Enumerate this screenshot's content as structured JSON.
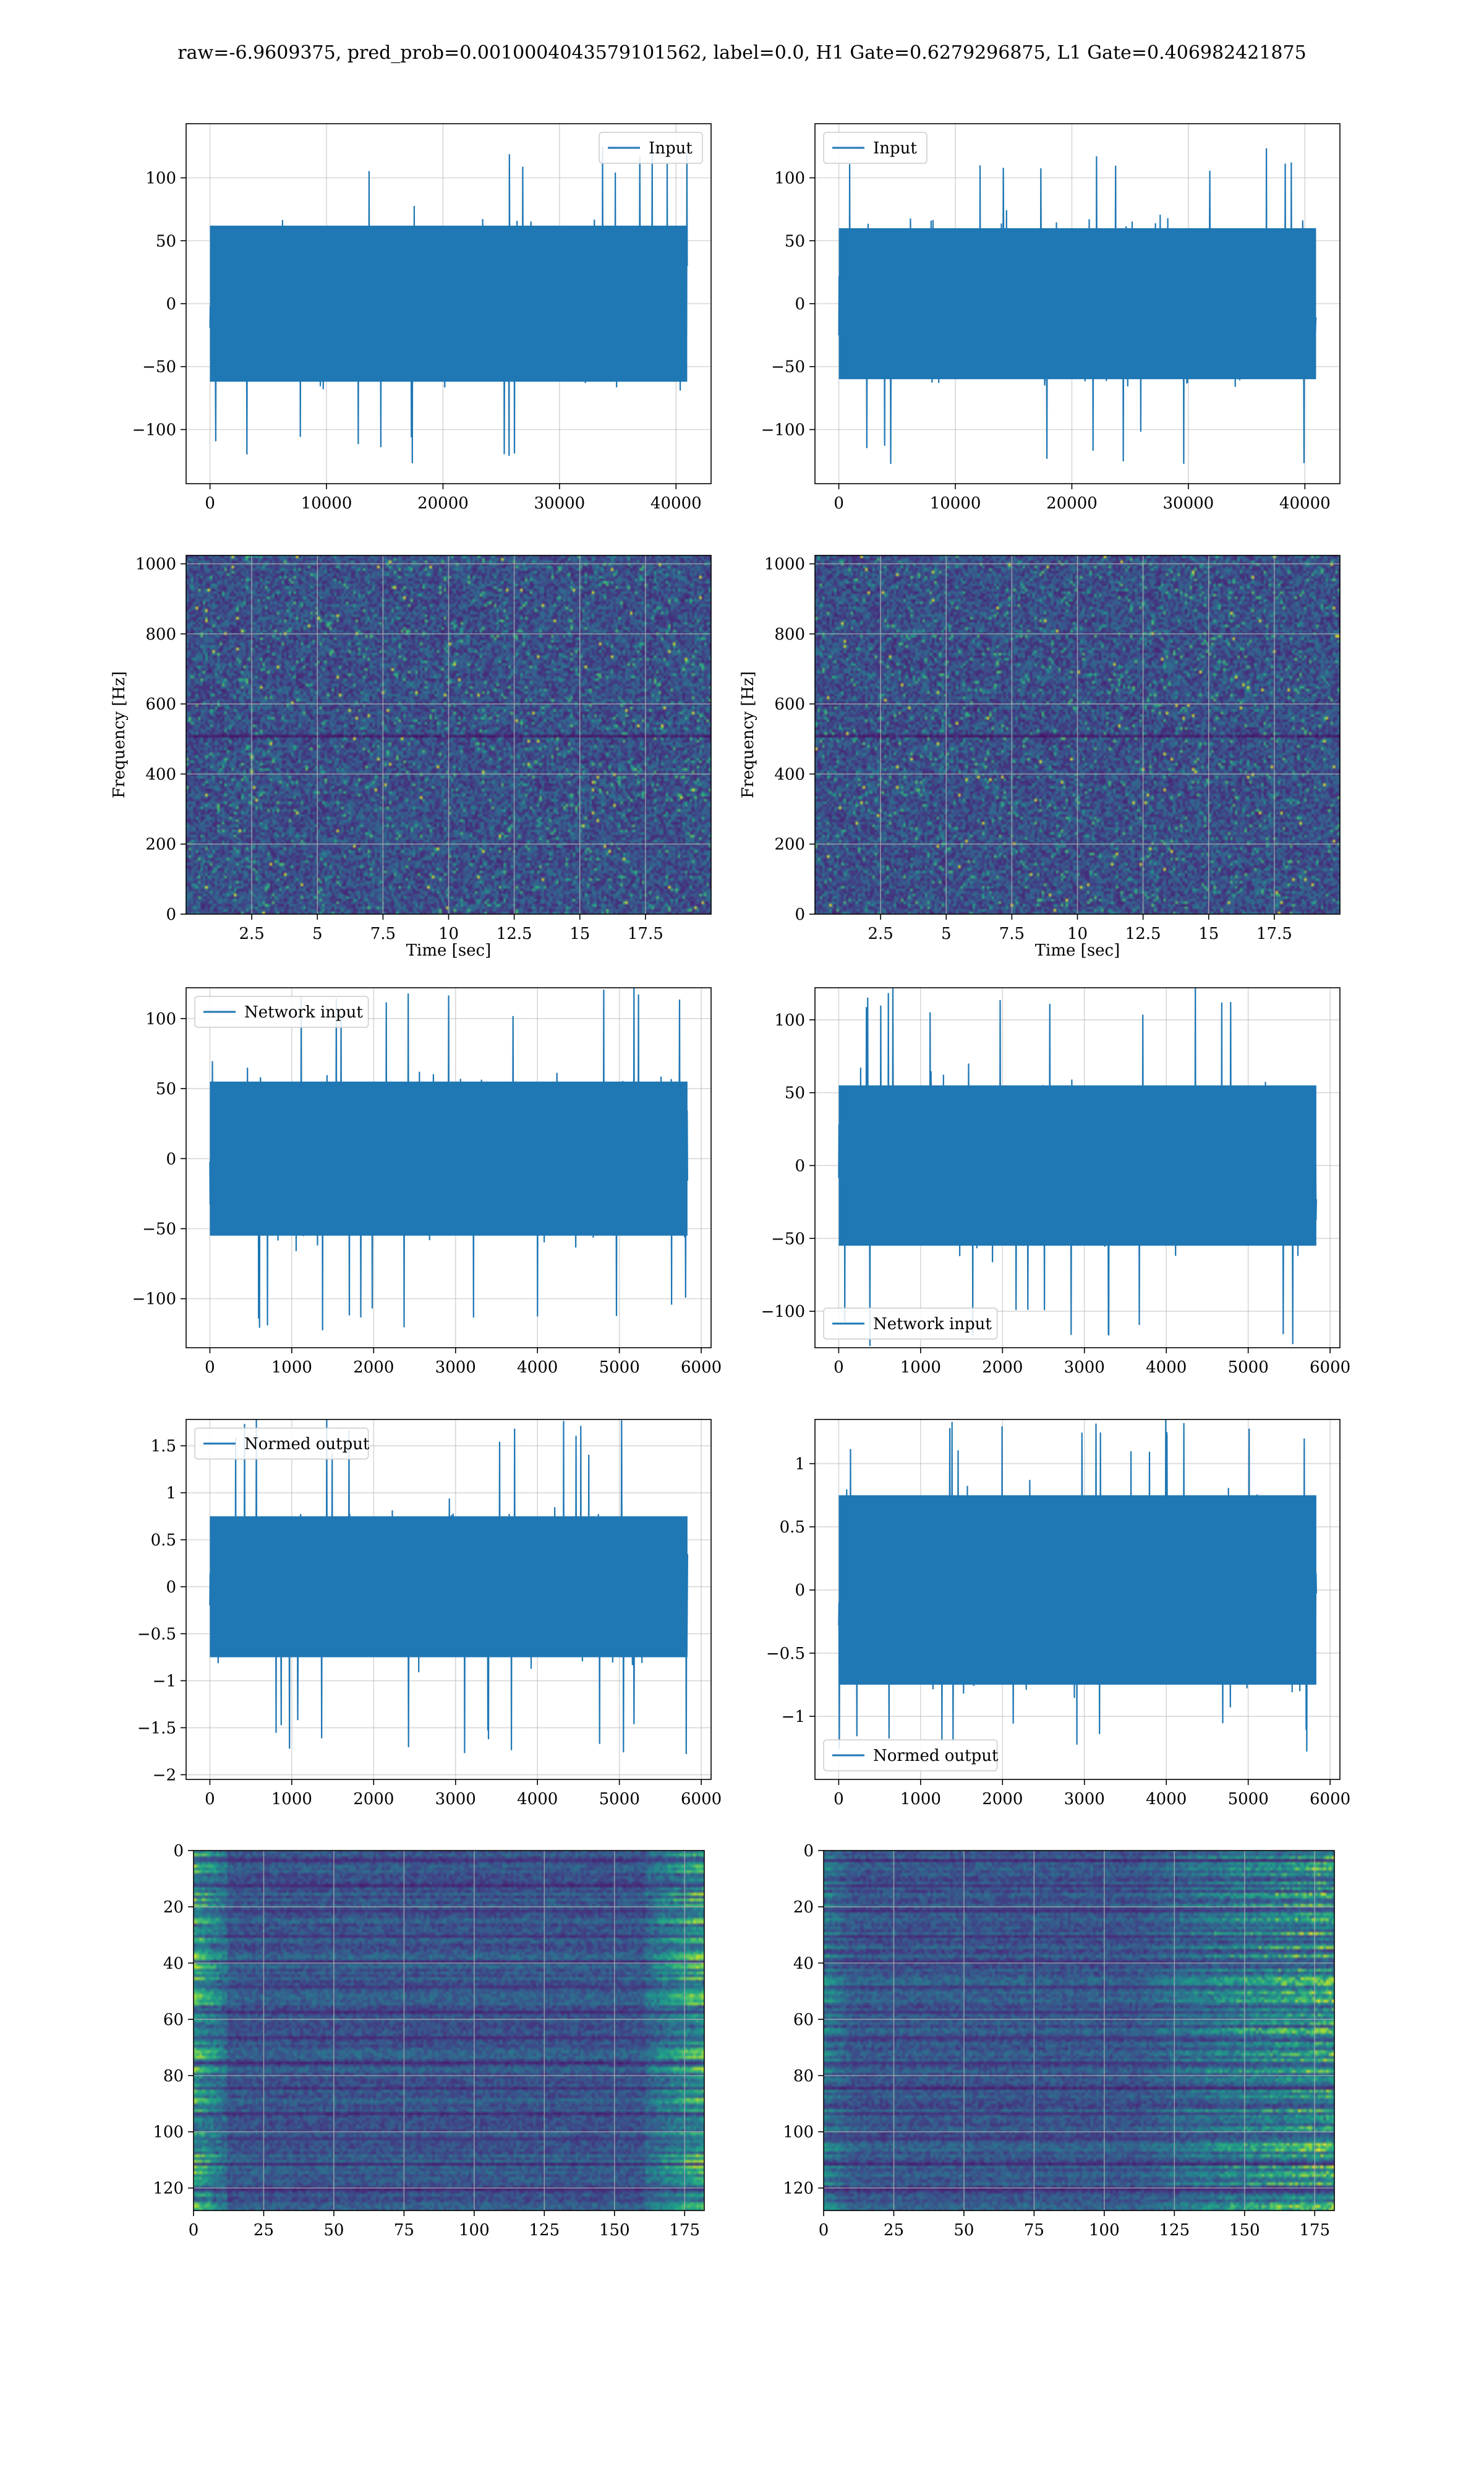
{
  "title": "raw=-6.9609375, pred_prob=0.0010004043579101562, label=0.0, H1 Gate=0.6279296875, L1 Gate=0.406982421875",
  "colors": {
    "series": "#1f77b4",
    "viridis": [
      "#440154",
      "#482878",
      "#3e4989",
      "#31688e",
      "#26828e",
      "#1f9e89",
      "#35b779",
      "#6ece58",
      "#b5de2b",
      "#fde725"
    ],
    "grid": "#b0b0b0"
  },
  "chart_data": [
    {
      "id": "h1-input",
      "type": "line",
      "x_range": [
        0,
        40960
      ],
      "xlim": [
        -2048,
        43008
      ],
      "ylim": [
        -143,
        143
      ],
      "xticks": [
        0,
        10000,
        20000,
        30000,
        40000
      ],
      "yticks": [
        -100,
        -50,
        0,
        50,
        100
      ],
      "series": [
        {
          "name": "Input"
        }
      ],
      "legend": "top-right",
      "envelope": {
        "core": 62,
        "peak": 132
      },
      "grid": true
    },
    {
      "id": "l1-input",
      "type": "line",
      "x_range": [
        0,
        40960
      ],
      "xlim": [
        -2048,
        43008
      ],
      "ylim": [
        -143,
        143
      ],
      "xticks": [
        0,
        10000,
        20000,
        30000,
        40000
      ],
      "yticks": [
        -100,
        -50,
        0,
        50,
        100
      ],
      "series": [
        {
          "name": "Input"
        }
      ],
      "legend": "top-left",
      "envelope": {
        "core": 60,
        "peak": 130
      },
      "grid": true
    },
    {
      "id": "h1-spectrogram",
      "type": "heatmap",
      "xlim": [
        0,
        20
      ],
      "ylim": [
        0,
        1024
      ],
      "xticks": [
        2.5,
        5.0,
        7.5,
        10.0,
        12.5,
        15.0,
        17.5
      ],
      "yticks": [
        0,
        200,
        400,
        600,
        800,
        1000
      ],
      "xlabel": "Time [sec]",
      "ylabel": "Frequency [Hz]",
      "grid": true
    },
    {
      "id": "l1-spectrogram",
      "type": "heatmap",
      "xlim": [
        0,
        20
      ],
      "ylim": [
        0,
        1024
      ],
      "xticks": [
        2.5,
        5.0,
        7.5,
        10.0,
        12.5,
        15.0,
        17.5
      ],
      "yticks": [
        0,
        200,
        400,
        600,
        800,
        1000
      ],
      "xlabel": "Time [sec]",
      "ylabel": "Frequency [Hz]",
      "grid": true
    },
    {
      "id": "h1-network-input",
      "type": "line",
      "x_range": [
        0,
        5832
      ],
      "xlim": [
        -290,
        6120
      ],
      "ylim": [
        -135,
        122
      ],
      "xticks": [
        0,
        1000,
        2000,
        3000,
        4000,
        5000,
        6000
      ],
      "yticks": [
        -100,
        -50,
        0,
        50,
        100
      ],
      "series": [
        {
          "name": "Network input"
        }
      ],
      "legend": "top-left",
      "envelope": {
        "core": 55,
        "peak": 123
      },
      "grid": true
    },
    {
      "id": "l1-network-input",
      "type": "line",
      "x_range": [
        0,
        5832
      ],
      "xlim": [
        -290,
        6120
      ],
      "ylim": [
        -125,
        122
      ],
      "xticks": [
        0,
        1000,
        2000,
        3000,
        4000,
        5000,
        6000
      ],
      "yticks": [
        -100,
        -50,
        0,
        50,
        100
      ],
      "series": [
        {
          "name": "Network input"
        }
      ],
      "legend": "bottom-left",
      "envelope": {
        "core": 55,
        "peak": 125
      },
      "grid": true
    },
    {
      "id": "h1-normed-output",
      "type": "line",
      "x_range": [
        0,
        5832
      ],
      "xlim": [
        -290,
        6120
      ],
      "ylim": [
        -2.05,
        1.78
      ],
      "xticks": [
        0,
        1000,
        2000,
        3000,
        4000,
        5000,
        6000
      ],
      "yticks": [
        -2.0,
        -1.5,
        -1.0,
        -0.5,
        0.0,
        0.5,
        1.0,
        1.5
      ],
      "series": [
        {
          "name": "Normed output"
        }
      ],
      "legend": "top-left",
      "envelope": {
        "core": 0.75,
        "peak": 1.8
      },
      "grid": true
    },
    {
      "id": "l1-normed-output",
      "type": "line",
      "x_range": [
        0,
        5832
      ],
      "xlim": [
        -290,
        6120
      ],
      "ylim": [
        -1.5,
        1.35
      ],
      "xticks": [
        0,
        1000,
        2000,
        3000,
        4000,
        5000,
        6000
      ],
      "yticks": [
        -1.0,
        -0.5,
        0.0,
        0.5,
        1.0
      ],
      "series": [
        {
          "name": "Normed output"
        }
      ],
      "legend": "bottom-left",
      "envelope": {
        "core": 0.75,
        "peak": 1.35
      },
      "grid": true
    },
    {
      "id": "h1-feature-map",
      "type": "heatmap",
      "xlim": [
        0,
        182
      ],
      "ylim": [
        128,
        0
      ],
      "xticks": [
        0,
        25,
        50,
        75,
        100,
        125,
        150,
        175
      ],
      "yticks": [
        0,
        20,
        40,
        60,
        80,
        100,
        120
      ],
      "activity": "edges",
      "grid": true
    },
    {
      "id": "l1-feature-map",
      "type": "heatmap",
      "xlim": [
        0,
        182
      ],
      "ylim": [
        128,
        0
      ],
      "xticks": [
        0,
        25,
        50,
        75,
        100,
        125,
        150,
        175
      ],
      "yticks": [
        0,
        20,
        40,
        60,
        80,
        100,
        120
      ],
      "activity": "right",
      "grid": true
    }
  ]
}
